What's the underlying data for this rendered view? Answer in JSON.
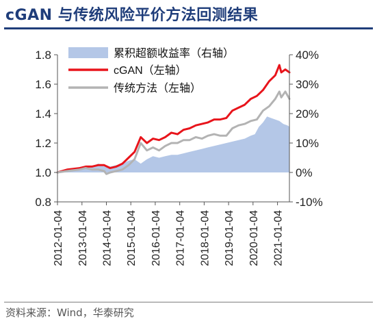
{
  "title": "cGAN 与传统风险平价方法回测结果",
  "source": "资料来源：Wind，华泰研究",
  "chart_data": {
    "type": "line",
    "left_axis": {
      "ylim": [
        0.8,
        1.8
      ],
      "ticks": [
        "0.8",
        "1.0",
        "1.2",
        "1.4",
        "1.6",
        "1.8"
      ]
    },
    "right_axis": {
      "ylim": [
        -10,
        40
      ],
      "ticks": [
        "-10%",
        "0%",
        "10%",
        "20%",
        "30%",
        "40%"
      ]
    },
    "x_ticks": [
      "2012-01-04",
      "2013-01-04",
      "2014-01-04",
      "2015-01-04",
      "2016-01-04",
      "2017-01-04",
      "2018-01-04",
      "2019-01-04",
      "2020-01-04",
      "2021-01-04"
    ],
    "x_range": [
      "2012-01-04",
      "2021-07-01"
    ],
    "legend_position": "top-left",
    "series": [
      {
        "name": "累积超额收益率（右轴）",
        "kind": "area",
        "axis": "right",
        "color": "#b4c7e7",
        "points": [
          [
            "2012-01-04",
            0
          ],
          [
            "2012-06-01",
            0.5
          ],
          [
            "2012-12-01",
            1.0
          ],
          [
            "2013-03-01",
            1.5
          ],
          [
            "2013-06-01",
            2.0
          ],
          [
            "2013-09-01",
            3.0
          ],
          [
            "2013-12-01",
            2.5
          ],
          [
            "2014-03-01",
            2.0
          ],
          [
            "2014-06-01",
            2.5
          ],
          [
            "2014-09-01",
            3.0
          ],
          [
            "2014-12-01",
            4.0
          ],
          [
            "2015-03-01",
            4.5
          ],
          [
            "2015-06-01",
            3.0
          ],
          [
            "2015-09-01",
            4.5
          ],
          [
            "2015-12-01",
            5.5
          ],
          [
            "2016-03-01",
            5.0
          ],
          [
            "2016-06-01",
            5.5
          ],
          [
            "2016-09-01",
            6.0
          ],
          [
            "2016-12-01",
            6.0
          ],
          [
            "2017-03-01",
            6.5
          ],
          [
            "2017-06-01",
            7.0
          ],
          [
            "2017-09-01",
            7.5
          ],
          [
            "2017-12-01",
            8.0
          ],
          [
            "2018-03-01",
            8.5
          ],
          [
            "2018-06-01",
            9.0
          ],
          [
            "2018-09-01",
            9.5
          ],
          [
            "2018-12-01",
            10.0
          ],
          [
            "2019-03-01",
            10.5
          ],
          [
            "2019-06-01",
            11.0
          ],
          [
            "2019-09-01",
            11.5
          ],
          [
            "2019-12-01",
            12.5
          ],
          [
            "2020-02-01",
            13.0
          ],
          [
            "2020-04-01",
            15.5
          ],
          [
            "2020-06-01",
            17.0
          ],
          [
            "2020-08-01",
            19.0
          ],
          [
            "2020-10-01",
            18.5
          ],
          [
            "2020-12-01",
            18.0
          ],
          [
            "2021-02-01",
            17.5
          ],
          [
            "2021-04-01",
            16.5
          ],
          [
            "2021-06-01",
            16.0
          ],
          [
            "2021-07-01",
            15.5
          ]
        ]
      },
      {
        "name": "cGAN（左轴）",
        "kind": "line",
        "axis": "left",
        "color": "#e8141b",
        "points": [
          [
            "2012-01-04",
            1.0
          ],
          [
            "2012-06-01",
            1.02
          ],
          [
            "2012-12-01",
            1.03
          ],
          [
            "2013-03-01",
            1.04
          ],
          [
            "2013-06-01",
            1.04
          ],
          [
            "2013-09-01",
            1.05
          ],
          [
            "2013-12-01",
            1.05
          ],
          [
            "2014-03-01",
            1.03
          ],
          [
            "2014-06-01",
            1.04
          ],
          [
            "2014-09-01",
            1.06
          ],
          [
            "2014-12-01",
            1.1
          ],
          [
            "2015-03-01",
            1.14
          ],
          [
            "2015-06-01",
            1.24
          ],
          [
            "2015-09-01",
            1.2
          ],
          [
            "2015-12-01",
            1.23
          ],
          [
            "2016-03-01",
            1.22
          ],
          [
            "2016-06-01",
            1.24
          ],
          [
            "2016-09-01",
            1.27
          ],
          [
            "2016-12-01",
            1.26
          ],
          [
            "2017-03-01",
            1.29
          ],
          [
            "2017-06-01",
            1.3
          ],
          [
            "2017-09-01",
            1.32
          ],
          [
            "2017-12-01",
            1.33
          ],
          [
            "2018-03-01",
            1.34
          ],
          [
            "2018-06-01",
            1.36
          ],
          [
            "2018-09-01",
            1.36
          ],
          [
            "2018-12-01",
            1.37
          ],
          [
            "2019-03-01",
            1.42
          ],
          [
            "2019-06-01",
            1.44
          ],
          [
            "2019-09-01",
            1.46
          ],
          [
            "2019-12-01",
            1.5
          ],
          [
            "2020-03-01",
            1.52
          ],
          [
            "2020-06-01",
            1.56
          ],
          [
            "2020-09-01",
            1.62
          ],
          [
            "2020-12-01",
            1.66
          ],
          [
            "2021-02-01",
            1.73
          ],
          [
            "2021-03-01",
            1.68
          ],
          [
            "2021-05-01",
            1.7
          ],
          [
            "2021-07-01",
            1.68
          ]
        ]
      },
      {
        "name": "传统方法（左轴）",
        "kind": "line",
        "axis": "left",
        "color": "#b3b3b3",
        "points": [
          [
            "2012-01-04",
            1.0
          ],
          [
            "2012-06-01",
            1.01
          ],
          [
            "2012-12-01",
            1.02
          ],
          [
            "2013-03-01",
            1.03
          ],
          [
            "2013-06-01",
            1.02
          ],
          [
            "2013-09-01",
            1.02
          ],
          [
            "2013-12-01",
            1.01
          ],
          [
            "2014-01-04",
            0.99
          ],
          [
            "2014-03-01",
            1.0
          ],
          [
            "2014-06-01",
            1.01
          ],
          [
            "2014-09-01",
            1.02
          ],
          [
            "2014-12-01",
            1.05
          ],
          [
            "2015-03-01",
            1.09
          ],
          [
            "2015-06-01",
            1.2
          ],
          [
            "2015-09-01",
            1.15
          ],
          [
            "2015-12-01",
            1.17
          ],
          [
            "2016-03-01",
            1.15
          ],
          [
            "2016-06-01",
            1.18
          ],
          [
            "2016-09-01",
            1.2
          ],
          [
            "2016-12-01",
            1.2
          ],
          [
            "2017-03-01",
            1.22
          ],
          [
            "2017-06-01",
            1.22
          ],
          [
            "2017-09-01",
            1.24
          ],
          [
            "2017-12-01",
            1.23
          ],
          [
            "2018-03-01",
            1.25
          ],
          [
            "2018-06-01",
            1.26
          ],
          [
            "2018-09-01",
            1.25
          ],
          [
            "2018-12-01",
            1.25
          ],
          [
            "2019-03-01",
            1.3
          ],
          [
            "2019-06-01",
            1.32
          ],
          [
            "2019-09-01",
            1.33
          ],
          [
            "2019-12-01",
            1.35
          ],
          [
            "2020-03-01",
            1.36
          ],
          [
            "2020-06-01",
            1.42
          ],
          [
            "2020-09-01",
            1.45
          ],
          [
            "2020-12-01",
            1.5
          ],
          [
            "2021-02-01",
            1.55
          ],
          [
            "2021-03-01",
            1.51
          ],
          [
            "2021-05-01",
            1.55
          ],
          [
            "2021-07-01",
            1.5
          ]
        ]
      }
    ]
  }
}
